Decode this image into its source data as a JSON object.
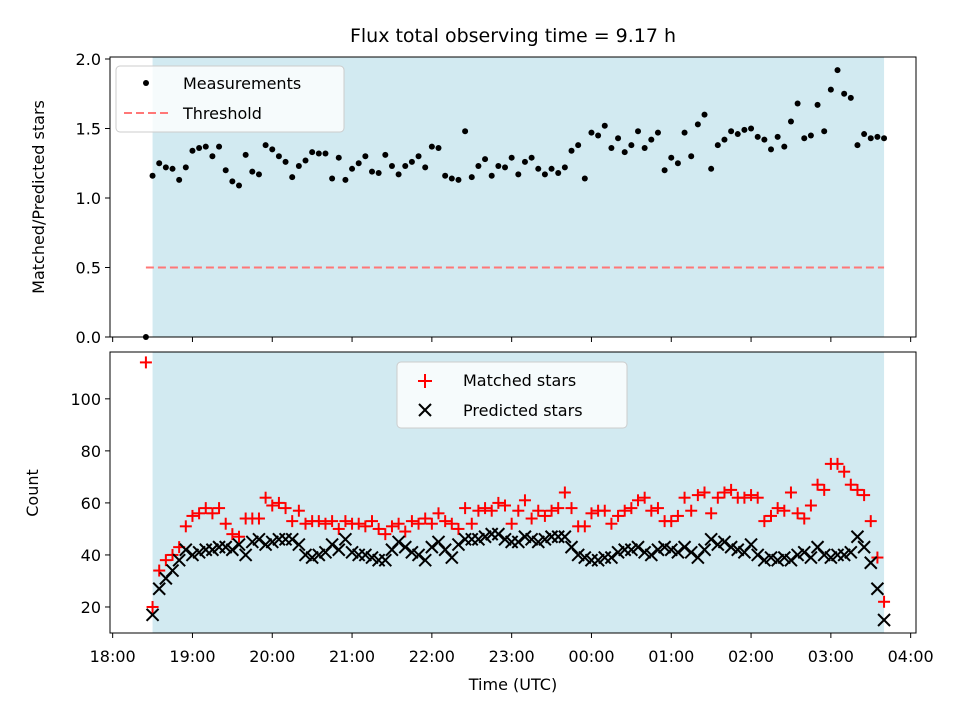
{
  "chart_data": [
    {
      "type": "scatter",
      "title": "Flux total observing time = 9.17 h",
      "xlabel": "",
      "ylabel": "Matched/Predicted stars",
      "ylim": [
        0,
        2.0
      ],
      "yticks": [
        "0.0",
        "0.5",
        "1.0",
        "1.5",
        "2.0"
      ],
      "xlim": [
        "17:58",
        "04:08"
      ],
      "observing_window": [
        "18:30",
        "03:40"
      ],
      "window_color": "#add8e6",
      "series": [
        {
          "name": "Measurements",
          "color": "#000000",
          "marker": "dot",
          "x": [
            "18:25",
            "18:30",
            "18:35",
            "18:40",
            "18:45",
            "18:50",
            "18:55",
            "19:00",
            "19:05",
            "19:10",
            "19:15",
            "19:20",
            "19:25",
            "19:30",
            "19:35",
            "19:40",
            "19:45",
            "19:50",
            "19:55",
            "20:00",
            "20:05",
            "20:10",
            "20:15",
            "20:20",
            "20:25",
            "20:30",
            "20:35",
            "20:40",
            "20:45",
            "20:50",
            "20:55",
            "21:00",
            "21:05",
            "21:10",
            "21:15",
            "21:20",
            "21:25",
            "21:30",
            "21:35",
            "21:40",
            "21:45",
            "21:50",
            "21:55",
            "22:00",
            "22:05",
            "22:10",
            "22:15",
            "22:20",
            "22:25",
            "22:30",
            "22:35",
            "22:40",
            "22:45",
            "22:50",
            "22:55",
            "23:00",
            "23:05",
            "23:10",
            "23:15",
            "23:20",
            "23:25",
            "23:30",
            "23:35",
            "23:40",
            "23:45",
            "23:50",
            "23:55",
            "00:00",
            "00:05",
            "00:10",
            "00:15",
            "00:20",
            "00:25",
            "00:30",
            "00:35",
            "00:40",
            "00:45",
            "00:50",
            "00:55",
            "01:00",
            "01:05",
            "01:10",
            "01:15",
            "01:20",
            "01:25",
            "01:30",
            "01:35",
            "01:40",
            "01:45",
            "01:50",
            "01:55",
            "02:00",
            "02:05",
            "02:10",
            "02:15",
            "02:20",
            "02:25",
            "02:30",
            "02:35",
            "02:40",
            "02:45",
            "02:50",
            "02:55",
            "03:00",
            "03:05",
            "03:10",
            "03:15",
            "03:20",
            "03:25",
            "03:30",
            "03:35",
            "03:40"
          ],
          "values": [
            0.0,
            1.16,
            1.25,
            1.22,
            1.21,
            1.13,
            1.22,
            1.34,
            1.36,
            1.37,
            1.3,
            1.37,
            1.2,
            1.12,
            1.09,
            1.31,
            1.19,
            1.17,
            1.38,
            1.35,
            1.3,
            1.26,
            1.15,
            1.23,
            1.27,
            1.33,
            1.32,
            1.32,
            1.14,
            1.29,
            1.13,
            1.21,
            1.25,
            1.3,
            1.19,
            1.18,
            1.31,
            1.23,
            1.17,
            1.23,
            1.26,
            1.3,
            1.22,
            1.37,
            1.36,
            1.16,
            1.14,
            1.13,
            1.48,
            1.15,
            1.23,
            1.28,
            1.16,
            1.23,
            1.22,
            1.29,
            1.17,
            1.26,
            1.29,
            1.21,
            1.17,
            1.21,
            1.18,
            1.22,
            1.34,
            1.38,
            1.14,
            1.47,
            1.45,
            1.52,
            1.36,
            1.43,
            1.33,
            1.38,
            1.48,
            1.36,
            1.42,
            1.47,
            1.2,
            1.29,
            1.25,
            1.47,
            1.3,
            1.53,
            1.6,
            1.21,
            1.38,
            1.42,
            1.48,
            1.46,
            1.49,
            1.5,
            1.44,
            1.42,
            1.35,
            1.44,
            1.37,
            1.55,
            1.68,
            1.43,
            1.45,
            1.67,
            1.48,
            1.78,
            1.92,
            1.75,
            1.72,
            1.38,
            1.46,
            1.43,
            1.44,
            1.43
          ]
        },
        {
          "name": "Threshold",
          "color": "#ff7777",
          "style": "dashed",
          "x": [
            "18:25",
            "03:40"
          ],
          "values": [
            0.5,
            0.5
          ]
        }
      ],
      "legend": {
        "placement": "upper left"
      }
    },
    {
      "type": "scatter",
      "xlabel": "Time (UTC)",
      "ylabel": "Count",
      "ylim": [
        10,
        118
      ],
      "yticks": [
        "20",
        "40",
        "60",
        "80",
        "100"
      ],
      "xticks": [
        "18:00",
        "19:00",
        "20:00",
        "21:00",
        "22:00",
        "23:00",
        "00:00",
        "01:00",
        "02:00",
        "03:00",
        "04:00"
      ],
      "xlim": [
        "17:58",
        "04:08"
      ],
      "observing_window": [
        "18:30",
        "03:40"
      ],
      "window_color": "#add8e6",
      "series": [
        {
          "name": "Matched stars",
          "color": "#ff0000",
          "marker": "plus",
          "x": [
            "18:25",
            "18:30",
            "18:35",
            "18:40",
            "18:45",
            "18:50",
            "18:55",
            "19:00",
            "19:05",
            "19:10",
            "19:15",
            "19:20",
            "19:25",
            "19:30",
            "19:35",
            "19:40",
            "19:45",
            "19:50",
            "19:55",
            "20:00",
            "20:05",
            "20:10",
            "20:15",
            "20:20",
            "20:25",
            "20:30",
            "20:35",
            "20:40",
            "20:45",
            "20:50",
            "20:55",
            "21:00",
            "21:05",
            "21:10",
            "21:15",
            "21:20",
            "21:25",
            "21:30",
            "21:35",
            "21:40",
            "21:45",
            "21:50",
            "21:55",
            "22:00",
            "22:05",
            "22:10",
            "22:15",
            "22:20",
            "22:25",
            "22:30",
            "22:35",
            "22:40",
            "22:45",
            "22:50",
            "22:55",
            "23:00",
            "23:05",
            "23:10",
            "23:15",
            "23:20",
            "23:25",
            "23:30",
            "23:35",
            "23:40",
            "23:45",
            "23:50",
            "23:55",
            "00:00",
            "00:05",
            "00:10",
            "00:15",
            "00:20",
            "00:25",
            "00:30",
            "00:35",
            "00:40",
            "00:45",
            "00:50",
            "00:55",
            "01:00",
            "01:05",
            "01:10",
            "01:15",
            "01:20",
            "01:25",
            "01:30",
            "01:35",
            "01:40",
            "01:45",
            "01:50",
            "01:55",
            "02:00",
            "02:05",
            "02:10",
            "02:15",
            "02:20",
            "02:25",
            "02:30",
            "02:35",
            "02:40",
            "02:45",
            "02:50",
            "02:55",
            "03:00",
            "03:05",
            "03:10",
            "03:15",
            "03:20",
            "03:25",
            "03:30",
            "03:35",
            "03:40"
          ],
          "values": [
            114,
            20,
            34,
            38,
            40,
            43,
            51,
            55,
            56,
            58,
            56,
            58,
            52,
            48,
            47,
            54,
            54,
            54,
            62,
            59,
            60,
            58,
            53,
            57,
            52,
            53,
            53,
            52,
            53,
            50,
            53,
            52,
            52,
            51,
            53,
            50,
            48,
            51,
            52,
            49,
            53,
            52,
            54,
            52,
            56,
            53,
            52,
            50,
            58,
            52,
            57,
            58,
            57,
            60,
            59,
            52,
            57,
            61,
            54,
            57,
            55,
            57,
            58,
            64,
            58,
            51,
            51,
            56,
            57,
            57,
            52,
            55,
            57,
            58,
            61,
            62,
            57,
            58,
            53,
            53,
            55,
            62,
            57,
            63,
            64,
            56,
            62,
            64,
            65,
            62,
            62,
            63,
            62,
            53,
            55,
            58,
            57,
            64,
            56,
            54,
            59,
            67,
            65,
            75,
            75,
            72,
            67,
            65,
            63,
            53,
            39,
            22
          ]
        },
        {
          "name": "Predicted stars",
          "color": "#000000",
          "marker": "x",
          "x": [
            "18:30",
            "18:35",
            "18:40",
            "18:45",
            "18:50",
            "18:55",
            "19:00",
            "19:05",
            "19:10",
            "19:15",
            "19:20",
            "19:25",
            "19:30",
            "19:35",
            "19:40",
            "19:45",
            "19:50",
            "19:55",
            "20:00",
            "20:05",
            "20:10",
            "20:15",
            "20:20",
            "20:25",
            "20:30",
            "20:35",
            "20:40",
            "20:45",
            "20:50",
            "20:55",
            "21:00",
            "21:05",
            "21:10",
            "21:15",
            "21:20",
            "21:25",
            "21:30",
            "21:35",
            "21:40",
            "21:45",
            "21:50",
            "21:55",
            "22:00",
            "22:05",
            "22:10",
            "22:15",
            "22:20",
            "22:25",
            "22:30",
            "22:35",
            "22:40",
            "22:45",
            "22:50",
            "22:55",
            "23:00",
            "23:05",
            "23:10",
            "23:15",
            "23:20",
            "23:25",
            "23:30",
            "23:35",
            "23:40",
            "23:45",
            "23:50",
            "23:55",
            "00:00",
            "00:05",
            "00:10",
            "00:15",
            "00:20",
            "00:25",
            "00:30",
            "00:35",
            "00:40",
            "00:45",
            "00:50",
            "00:55",
            "01:00",
            "01:05",
            "01:10",
            "01:15",
            "01:20",
            "01:25",
            "01:30",
            "01:35",
            "01:40",
            "01:45",
            "01:50",
            "01:55",
            "02:00",
            "02:05",
            "02:10",
            "02:15",
            "02:20",
            "02:25",
            "02:30",
            "02:35",
            "02:40",
            "02:45",
            "02:50",
            "02:55",
            "03:00",
            "03:05",
            "03:10",
            "03:15",
            "03:20",
            "03:25",
            "03:30",
            "03:35",
            "03:40"
          ],
          "values": [
            17,
            27,
            31,
            34,
            38,
            42,
            40,
            41,
            42,
            42,
            43,
            43,
            42,
            44,
            40,
            45,
            46,
            44,
            45,
            46,
            46,
            46,
            44,
            40,
            39,
            40,
            41,
            44,
            42,
            46,
            41,
            40,
            40,
            39,
            38,
            38,
            42,
            45,
            43,
            41,
            40,
            38,
            43,
            45,
            42,
            39,
            44,
            46,
            46,
            46,
            47,
            48,
            48,
            46,
            45,
            45,
            47,
            46,
            45,
            46,
            47,
            47,
            47,
            43,
            40,
            39,
            38,
            38,
            39,
            39,
            41,
            42,
            42,
            43,
            41,
            40,
            42,
            43,
            42,
            41,
            43,
            41,
            39,
            42,
            46,
            44,
            45,
            43,
            42,
            41,
            44,
            40,
            38,
            39,
            38,
            39,
            38,
            40,
            41,
            39,
            43,
            40,
            39,
            40,
            40,
            41,
            47,
            43,
            37,
            27,
            15
          ]
        }
      ],
      "legend": {
        "placement": "upper center"
      }
    }
  ]
}
